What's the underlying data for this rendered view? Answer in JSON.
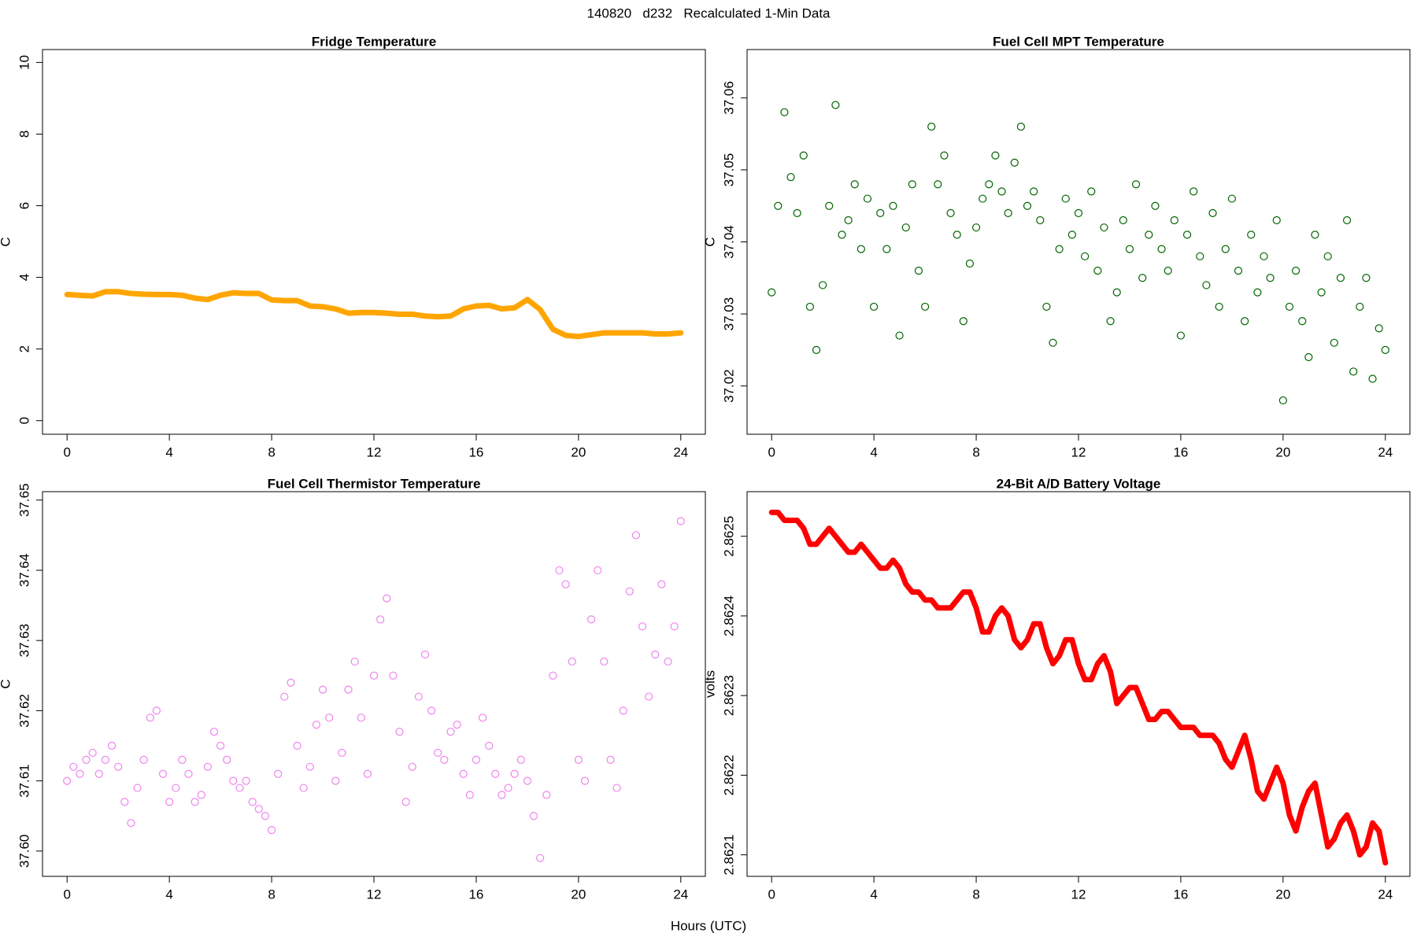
{
  "title": "140820   d232   Recalculated 1-Min Data",
  "xlabel": "Hours (UTC)",
  "chart_data": [
    {
      "type": "line",
      "title": "Fridge Temperature",
      "ylabel": "C",
      "color": "#ffa500",
      "x": [
        0,
        0.5,
        1,
        1.5,
        2,
        2.5,
        3,
        3.5,
        4,
        4.5,
        5,
        5.5,
        6,
        6.5,
        7,
        7.5,
        8,
        8.5,
        9,
        9.5,
        10,
        10.5,
        11,
        11.5,
        12,
        12.5,
        13,
        13.5,
        14,
        14.5,
        15,
        15.5,
        16,
        16.5,
        17,
        17.5,
        18,
        18.5,
        19,
        19.5,
        20,
        20.5,
        21,
        21.5,
        22,
        22.5,
        23,
        23.5,
        24
      ],
      "values": [
        3.52,
        3.5,
        3.48,
        3.6,
        3.6,
        3.55,
        3.53,
        3.52,
        3.52,
        3.5,
        3.42,
        3.38,
        3.5,
        3.57,
        3.55,
        3.55,
        3.37,
        3.35,
        3.35,
        3.2,
        3.18,
        3.12,
        3.0,
        3.02,
        3.02,
        3.0,
        2.97,
        2.97,
        2.92,
        2.9,
        2.92,
        3.12,
        3.2,
        3.22,
        3.12,
        3.15,
        3.38,
        3.1,
        2.55,
        2.38,
        2.35,
        2.4,
        2.45,
        2.45,
        2.45,
        2.45,
        2.42,
        2.42,
        2.45
      ],
      "xlim": [
        -0.96,
        24.96
      ],
      "xticks": [
        0,
        4,
        8,
        12,
        16,
        20,
        24
      ],
      "ylim": [
        -0.38,
        10.36
      ],
      "yticks": [
        0,
        2,
        4,
        6,
        8,
        10
      ]
    },
    {
      "type": "scatter",
      "title": "Fuel Cell MPT Temperature",
      "ylabel": "C",
      "color": "#006400",
      "x": [
        0,
        0.25,
        0.5,
        0.75,
        1,
        1.25,
        1.5,
        1.75,
        2,
        2.25,
        2.5,
        2.75,
        3,
        3.25,
        3.5,
        3.75,
        4,
        4.25,
        4.5,
        4.75,
        5,
        5.25,
        5.5,
        5.75,
        6,
        6.25,
        6.5,
        6.75,
        7,
        7.25,
        7.5,
        7.75,
        8,
        8.25,
        8.5,
        8.75,
        9,
        9.25,
        9.5,
        9.75,
        10,
        10.25,
        10.5,
        10.75,
        11,
        11.25,
        11.5,
        11.75,
        12,
        12.25,
        12.5,
        12.75,
        13,
        13.25,
        13.5,
        13.75,
        14,
        14.25,
        14.5,
        14.75,
        15,
        15.25,
        15.5,
        15.75,
        16,
        16.25,
        16.5,
        16.75,
        17,
        17.25,
        17.5,
        17.75,
        18,
        18.25,
        18.5,
        18.75,
        19,
        19.25,
        19.5,
        19.75,
        20,
        20.25,
        20.5,
        20.75,
        21,
        21.25,
        21.5,
        21.75,
        22,
        22.25,
        22.5,
        22.75,
        23,
        23.25,
        23.5,
        23.75,
        24
      ],
      "values": [
        37.033,
        37.045,
        37.058,
        37.049,
        37.044,
        37.052,
        37.031,
        37.025,
        37.034,
        37.045,
        37.059,
        37.041,
        37.043,
        37.048,
        37.039,
        37.046,
        37.031,
        37.044,
        37.039,
        37.045,
        37.027,
        37.042,
        37.048,
        37.036,
        37.031,
        37.056,
        37.048,
        37.052,
        37.044,
        37.041,
        37.029,
        37.037,
        37.042,
        37.046,
        37.048,
        37.052,
        37.047,
        37.044,
        37.051,
        37.056,
        37.045,
        37.047,
        37.043,
        37.031,
        37.026,
        37.039,
        37.046,
        37.041,
        37.044,
        37.038,
        37.047,
        37.036,
        37.042,
        37.029,
        37.033,
        37.043,
        37.039,
        37.048,
        37.035,
        37.041,
        37.045,
        37.039,
        37.036,
        37.043,
        37.027,
        37.041,
        37.047,
        37.038,
        37.034,
        37.044,
        37.031,
        37.039,
        37.046,
        37.036,
        37.029,
        37.041,
        37.033,
        37.038,
        37.035,
        37.043,
        37.018,
        37.031,
        37.036,
        37.029,
        37.024,
        37.041,
        37.033,
        37.038,
        37.026,
        37.035,
        37.043,
        37.022,
        37.031,
        37.035,
        37.021,
        37.028,
        37.025
      ],
      "xlim": [
        -0.96,
        24.96
      ],
      "xticks": [
        0,
        4,
        8,
        12,
        16,
        20,
        24
      ],
      "ylim": [
        37.0133,
        37.0667
      ],
      "yticks": [
        37.02,
        37.03,
        37.04,
        37.05,
        37.06
      ]
    },
    {
      "type": "scatter",
      "title": "Fuel Cell Thermistor Temperature",
      "ylabel": "C",
      "color": "#ee82ee",
      "x": [
        0,
        0.25,
        0.5,
        0.75,
        1,
        1.25,
        1.5,
        1.75,
        2,
        2.25,
        2.5,
        2.75,
        3,
        3.25,
        3.5,
        3.75,
        4,
        4.25,
        4.5,
        4.75,
        5,
        5.25,
        5.5,
        5.75,
        6,
        6.25,
        6.5,
        6.75,
        7,
        7.25,
        7.5,
        7.75,
        8,
        8.25,
        8.5,
        8.75,
        9,
        9.25,
        9.5,
        9.75,
        10,
        10.25,
        10.5,
        10.75,
        11,
        11.25,
        11.5,
        11.75,
        12,
        12.25,
        12.5,
        12.75,
        13,
        13.25,
        13.5,
        13.75,
        14,
        14.25,
        14.5,
        14.75,
        15,
        15.25,
        15.5,
        15.75,
        16,
        16.25,
        16.5,
        16.75,
        17,
        17.25,
        17.5,
        17.75,
        18,
        18.25,
        18.5,
        18.75,
        19,
        19.25,
        19.5,
        19.75,
        20,
        20.25,
        20.5,
        20.75,
        21,
        21.25,
        21.5,
        21.75,
        22,
        22.25,
        22.5,
        22.75,
        23,
        23.25,
        23.5,
        23.75,
        24
      ],
      "values": [
        37.61,
        37.612,
        37.611,
        37.613,
        37.614,
        37.611,
        37.613,
        37.615,
        37.612,
        37.607,
        37.604,
        37.609,
        37.613,
        37.619,
        37.62,
        37.611,
        37.607,
        37.609,
        37.613,
        37.611,
        37.607,
        37.608,
        37.612,
        37.617,
        37.615,
        37.613,
        37.61,
        37.609,
        37.61,
        37.607,
        37.606,
        37.605,
        37.603,
        37.611,
        37.622,
        37.624,
        37.615,
        37.609,
        37.612,
        37.618,
        37.623,
        37.619,
        37.61,
        37.614,
        37.623,
        37.627,
        37.619,
        37.611,
        37.625,
        37.633,
        37.636,
        37.625,
        37.617,
        37.607,
        37.612,
        37.622,
        37.628,
        37.62,
        37.614,
        37.613,
        37.617,
        37.618,
        37.611,
        37.608,
        37.613,
        37.619,
        37.615,
        37.611,
        37.608,
        37.609,
        37.611,
        37.613,
        37.61,
        37.605,
        37.599,
        37.608,
        37.625,
        37.64,
        37.638,
        37.627,
        37.613,
        37.61,
        37.633,
        37.64,
        37.627,
        37.613,
        37.609,
        37.62,
        37.637,
        37.645,
        37.632,
        37.622,
        37.628,
        37.638,
        37.627,
        37.632,
        37.647
      ],
      "xlim": [
        -0.96,
        24.96
      ],
      "xticks": [
        0,
        4,
        8,
        12,
        16,
        20,
        24
      ],
      "ylim": [
        37.5964,
        37.6512
      ],
      "yticks": [
        {
          "value": 37.6,
          "label": "37.60"
        },
        37.61,
        37.62,
        37.63,
        37.64,
        37.65
      ]
    },
    {
      "type": "line",
      "title": "24-Bit A/D Battery Voltage",
      "ylabel": "volts",
      "color": "#ff0000",
      "x": [
        0,
        0.25,
        0.5,
        0.75,
        1,
        1.25,
        1.5,
        1.75,
        2,
        2.25,
        2.5,
        2.75,
        3,
        3.25,
        3.5,
        3.75,
        4,
        4.25,
        4.5,
        4.75,
        5,
        5.25,
        5.5,
        5.75,
        6,
        6.25,
        6.5,
        6.75,
        7,
        7.25,
        7.5,
        7.75,
        8,
        8.25,
        8.5,
        8.75,
        9,
        9.25,
        9.5,
        9.75,
        10,
        10.25,
        10.5,
        10.75,
        11,
        11.25,
        11.5,
        11.75,
        12,
        12.25,
        12.5,
        12.75,
        13,
        13.25,
        13.5,
        13.75,
        14,
        14.25,
        14.5,
        14.75,
        15,
        15.25,
        15.5,
        15.75,
        16,
        16.25,
        16.5,
        16.75,
        17,
        17.25,
        17.5,
        17.75,
        18,
        18.25,
        18.5,
        18.75,
        19,
        19.25,
        19.5,
        19.75,
        20,
        20.25,
        20.5,
        20.75,
        21,
        21.25,
        21.5,
        21.75,
        22,
        22.25,
        22.5,
        22.75,
        23,
        23.25,
        23.5,
        23.75,
        24
      ],
      "values": [
        2.86253,
        2.86253,
        2.86252,
        2.86252,
        2.86252,
        2.86251,
        2.86249,
        2.86249,
        2.8625,
        2.86251,
        2.8625,
        2.86249,
        2.86248,
        2.86248,
        2.86249,
        2.86248,
        2.86247,
        2.86246,
        2.86246,
        2.86247,
        2.86246,
        2.86244,
        2.86243,
        2.86243,
        2.86242,
        2.86242,
        2.86241,
        2.86241,
        2.86241,
        2.86242,
        2.86243,
        2.86243,
        2.86241,
        2.86238,
        2.86238,
        2.8624,
        2.86241,
        2.8624,
        2.86237,
        2.86236,
        2.86237,
        2.86239,
        2.86239,
        2.86236,
        2.86234,
        2.86235,
        2.86237,
        2.86237,
        2.86234,
        2.86232,
        2.86232,
        2.86234,
        2.86235,
        2.86233,
        2.86229,
        2.8623,
        2.86231,
        2.86231,
        2.86229,
        2.86227,
        2.86227,
        2.86228,
        2.86228,
        2.86227,
        2.86226,
        2.86226,
        2.86226,
        2.86225,
        2.86225,
        2.86225,
        2.86224,
        2.86222,
        2.86221,
        2.86223,
        2.86225,
        2.86222,
        2.86218,
        2.86217,
        2.86219,
        2.86221,
        2.86219,
        2.86215,
        2.86213,
        2.86216,
        2.86218,
        2.86219,
        2.86215,
        2.86211,
        2.86212,
        2.86214,
        2.86215,
        2.86213,
        2.8621,
        2.86211,
        2.86214,
        2.86213,
        2.86209
      ],
      "xlim": [
        -0.96,
        24.96
      ],
      "xticks": [
        0,
        4,
        8,
        12,
        16,
        20,
        24
      ],
      "ylim": [
        2.862073,
        2.862556
      ],
      "yticks": [
        2.8621,
        2.8622,
        2.8623,
        2.8624,
        2.8625
      ]
    }
  ]
}
